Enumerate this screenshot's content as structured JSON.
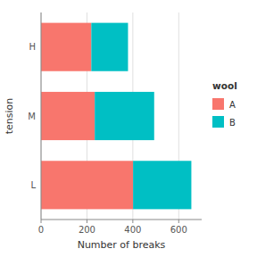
{
  "chart_data": {
    "type": "bar",
    "orientation": "horizontal",
    "stacked": true,
    "categories": [
      "H",
      "M",
      "L"
    ],
    "series": [
      {
        "name": "A",
        "color": "#F8766D",
        "values": [
          219,
          234,
          401
        ]
      },
      {
        "name": "B",
        "color": "#00BFC4",
        "values": [
          160,
          259,
          254
        ]
      }
    ],
    "xlabel": "Number of breaks",
    "ylabel": "tension",
    "legend_title": "wool",
    "xlim": [
      0,
      700
    ],
    "xticks": [
      0,
      200,
      400,
      600
    ],
    "grid": true,
    "legend": "right"
  }
}
